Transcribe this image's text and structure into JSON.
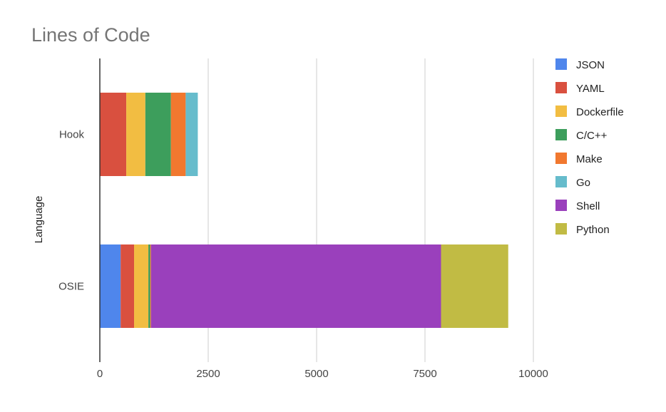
{
  "chart_data": {
    "type": "bar",
    "orientation": "horizontal",
    "stacked": true,
    "title": "Lines of Code",
    "xlabel": "",
    "ylabel": "Language",
    "categories": [
      "Hook",
      "OSIE"
    ],
    "xlim": [
      0,
      10000
    ],
    "xticks": [
      0,
      2500,
      5000,
      7500,
      10000
    ],
    "grid": true,
    "legend_position": "right",
    "series": [
      {
        "name": "JSON",
        "color": "#4f86ec",
        "values": [
          0,
          480
        ]
      },
      {
        "name": "YAML",
        "color": "#d9503f",
        "values": [
          610,
          310
        ]
      },
      {
        "name": "Dockerfile",
        "color": "#f2bd42",
        "values": [
          440,
          330
        ]
      },
      {
        "name": "C/C++",
        "color": "#3d9e5c",
        "values": [
          590,
          40
        ]
      },
      {
        "name": "Make",
        "color": "#f1782f",
        "values": [
          340,
          20
        ]
      },
      {
        "name": "Go",
        "color": "#66bccc",
        "values": [
          280,
          0
        ]
      },
      {
        "name": "Shell",
        "color": "#9a40bc",
        "values": [
          0,
          6690
        ]
      },
      {
        "name": "Python",
        "color": "#c1bb44",
        "values": [
          0,
          1550
        ]
      }
    ]
  }
}
